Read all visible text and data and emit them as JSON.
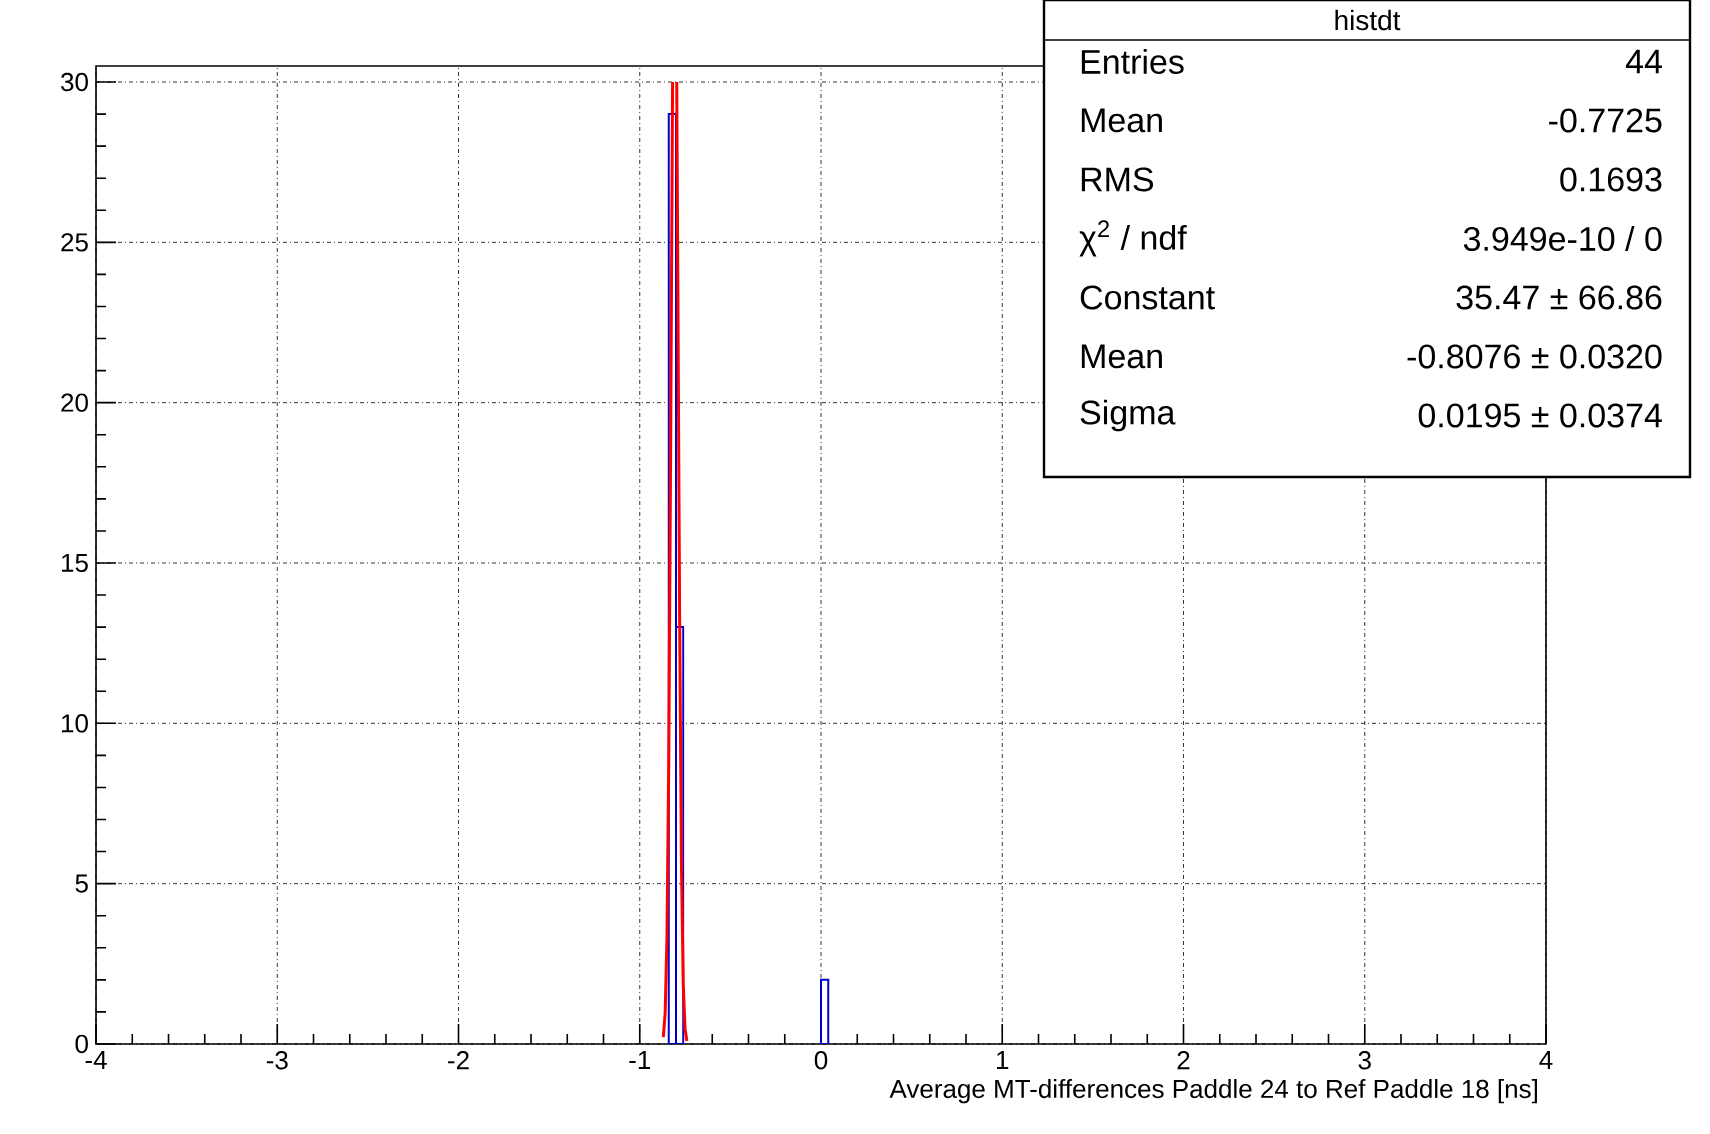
{
  "chart_data": {
    "type": "histogram",
    "xlabel": "Average MT-differences Paddle 24 to Ref Paddle 18 [ns]",
    "xlim": [
      -4,
      4
    ],
    "ylim": [
      0,
      30.5
    ],
    "xticks": [
      -4,
      -3,
      -2,
      -1,
      0,
      1,
      2,
      3,
      4
    ],
    "yticks": [
      0,
      5,
      10,
      15,
      20,
      25,
      30
    ],
    "grid": true,
    "series": [
      {
        "color": "#0000cc",
        "bins": [
          -0.84,
          -0.8,
          -0.76
        ],
        "values": [
          29,
          13
        ]
      },
      {
        "color": "#0000cc",
        "bins": [
          0,
          0.04
        ],
        "values": [
          2
        ]
      },
      {
        "type": "line",
        "color": "#ff0000",
        "x": [
          -0.87,
          -0.86,
          -0.85,
          -0.84,
          -0.83,
          -0.819,
          -0.808,
          -0.796,
          -0.79,
          -0.78,
          -0.77,
          -0.76,
          -0.75,
          -0.74
        ],
        "values": [
          0.21,
          0.95,
          3.3,
          8.8,
          18.2,
          30,
          null,
          30,
          23.8,
          13.3,
          5.6,
          1.84,
          0.47,
          0.09
        ]
      }
    ],
    "annotations": [
      "histdt",
      "Entries",
      "44",
      "Mean",
      "-0.7725",
      "RMS",
      "0.1693",
      "χ$^{2}$ / ndf",
      "3.949e-10 / 0",
      "Constant",
      "35.47 ± 66.86",
      "Mean",
      "-0.8076 ± 0.0320",
      "Sigma",
      "0.0195 ± 0.0374"
    ]
  }
}
